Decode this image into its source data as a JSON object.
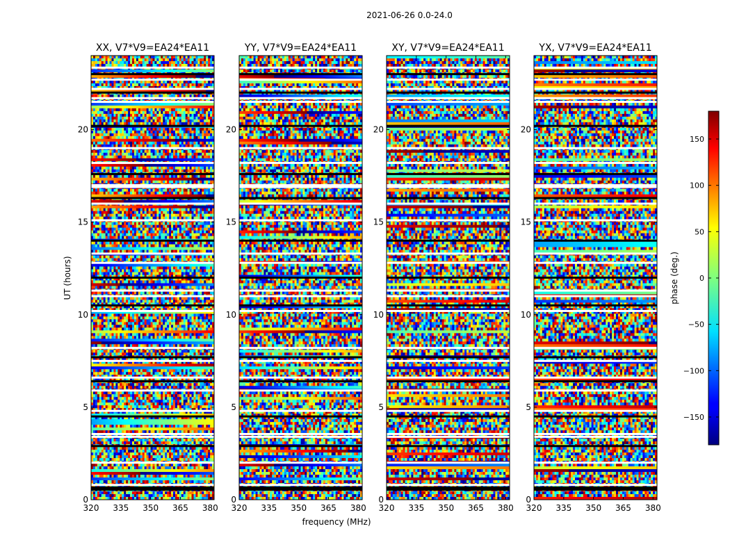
{
  "chart_data": {
    "type": "heatmap",
    "suptitle": "2021-06-26 0.0-24.0",
    "xlabel": "frequency (MHz)",
    "ylabel": "UT (hours)",
    "xlim": [
      320,
      382
    ],
    "ylim": [
      0,
      24
    ],
    "x_ticks": [
      "320",
      "335",
      "350",
      "365",
      "380"
    ],
    "x_tick_values": [
      320,
      335,
      350,
      365,
      380
    ],
    "y_ticks": [
      "0",
      "5",
      "10",
      "15",
      "20"
    ],
    "y_tick_values": [
      0,
      5,
      10,
      15,
      20
    ],
    "panels": [
      {
        "title": "XX, V7*V9=EA24*EA11"
      },
      {
        "title": "YY, V7*V9=EA24*EA11"
      },
      {
        "title": "XY, V7*V9=EA24*EA11"
      },
      {
        "title": "YX, V7*V9=EA24*EA11"
      }
    ],
    "colorbar": {
      "label": "phase (deg.)",
      "colormap": "jet",
      "range": [
        -180,
        180
      ],
      "ticks": [
        "150",
        "100",
        "50",
        "0",
        "−50",
        "−100",
        "−150"
      ],
      "tick_values": [
        150,
        100,
        50,
        0,
        -50,
        -100,
        -150
      ]
    },
    "flagged_hours": [
      0.55,
      0.8,
      2.0,
      2.9,
      3.4,
      3.55,
      4.5,
      4.8,
      5.9,
      6.4,
      6.6,
      7.5,
      7.7,
      8.2,
      10.2,
      10.5,
      11.0,
      11.3,
      12.0,
      12.8,
      13.3,
      14.0,
      15.1,
      16.0,
      16.3,
      16.9,
      17.0,
      17.6,
      18.2,
      19.0,
      20.2,
      21.5,
      21.7,
      22.0,
      22.2,
      22.7,
      23.0,
      23.35
    ]
  }
}
